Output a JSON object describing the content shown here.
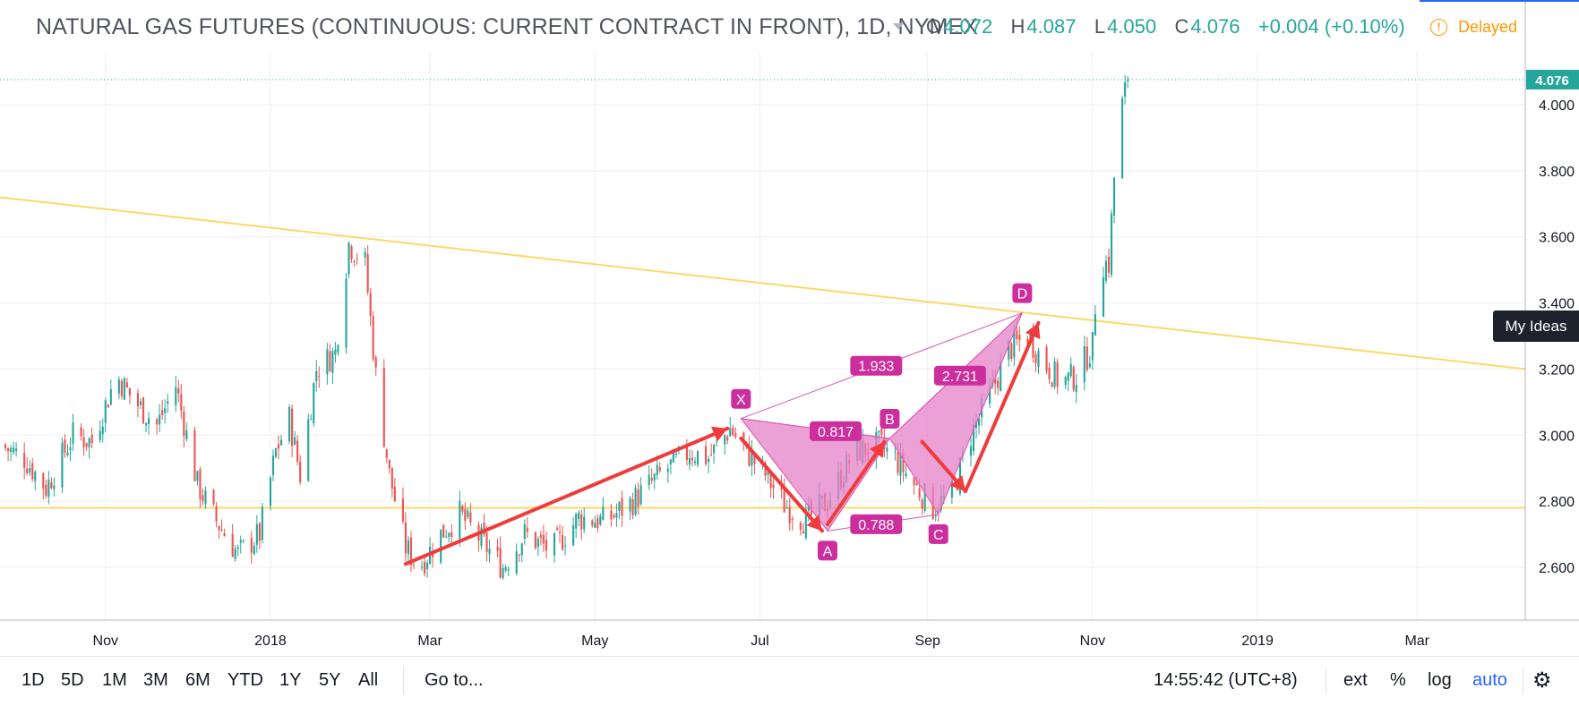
{
  "header": {
    "symbol_title": "NATURAL GAS FUTURES (CONTINUOUS: CURRENT CONTRACT IN FRONT), 1D, NYMEX",
    "ohlc": {
      "o_label": "O",
      "o_value": "4.072",
      "h_label": "H",
      "h_value": "4.087",
      "l_label": "L",
      "l_value": "4.050",
      "c_label": "C",
      "c_value": "4.076",
      "change": "+0.004 (+0.10%)"
    },
    "delayed_label": "Delayed",
    "delayed_icon": "exclamation-circle-icon"
  },
  "side_button": {
    "label": "My Ideas"
  },
  "bottom_bar": {
    "ranges": [
      "1D",
      "5D",
      "1M",
      "3M",
      "6M",
      "YTD",
      "1Y",
      "5Y",
      "All"
    ],
    "goto_label": "Go to...",
    "clock": "14:55:42 (UTC+8)",
    "options": [
      "ext",
      "%",
      "log",
      "auto"
    ],
    "active_option": "auto",
    "settings_icon": "gear-icon"
  },
  "colors": {
    "up": "#26a69a",
    "down": "#ef5350",
    "grid": "#eceff4",
    "trendline": "#fdd867",
    "pattern_fill": "#e682c8",
    "pattern_stroke": "#dc54b0",
    "label_bg": "#cc2f9d",
    "arrow": "#ef3b3b",
    "last_price_bg": "#26a69a"
  },
  "chart_data": {
    "type": "candlestick",
    "x_tick_labels": [
      "Nov",
      "2018",
      "Mar",
      "May",
      "Jul",
      "Sep",
      "Nov",
      "2019",
      "Mar"
    ],
    "x_tick_dates": [
      "2017-11-01",
      "2018-01-01",
      "2018-03-01",
      "2018-05-01",
      "2018-07-01",
      "2018-09-01",
      "2018-11-01",
      "2019-01-01",
      "2019-03-01"
    ],
    "x_range": [
      "2017-09-23",
      "2019-04-10"
    ],
    "y_tick_labels": [
      "2.600",
      "2.800",
      "3.000",
      "3.200",
      "3.400",
      "3.600",
      "3.800",
      "4.000"
    ],
    "ylim": [
      2.44,
      4.16
    ],
    "last_price": "4.076",
    "grid": true,
    "anchors": [
      [
        "2017-09-23",
        2.97
      ],
      [
        "2017-10-02",
        2.93
      ],
      [
        "2017-10-10",
        2.84
      ],
      [
        "2017-10-20",
        3.0
      ],
      [
        "2017-10-27",
        2.98
      ],
      [
        "2017-11-05",
        3.18
      ],
      [
        "2017-11-12",
        3.1
      ],
      [
        "2017-11-20",
        3.03
      ],
      [
        "2017-11-27",
        3.15
      ],
      [
        "2017-12-05",
        2.85
      ],
      [
        "2017-12-12",
        2.74
      ],
      [
        "2017-12-20",
        2.64
      ],
      [
        "2017-12-28",
        2.7
      ],
      [
        "2018-01-03",
        2.95
      ],
      [
        "2018-01-08",
        3.05
      ],
      [
        "2018-01-12",
        2.88
      ],
      [
        "2018-01-18",
        3.2
      ],
      [
        "2018-01-25",
        3.25
      ],
      [
        "2018-01-30",
        3.58
      ],
      [
        "2018-02-05",
        3.52
      ],
      [
        "2018-02-09",
        3.18
      ],
      [
        "2018-02-14",
        2.88
      ],
      [
        "2018-02-20",
        2.66
      ],
      [
        "2018-02-25",
        2.6
      ],
      [
        "2018-03-05",
        2.7
      ],
      [
        "2018-03-12",
        2.76
      ],
      [
        "2018-03-20",
        2.68
      ],
      [
        "2018-03-28",
        2.6
      ],
      [
        "2018-04-05",
        2.7
      ],
      [
        "2018-04-15",
        2.65
      ],
      [
        "2018-04-25",
        2.75
      ],
      [
        "2018-05-05",
        2.74
      ],
      [
        "2018-05-15",
        2.8
      ],
      [
        "2018-05-25",
        2.88
      ],
      [
        "2018-06-05",
        2.95
      ],
      [
        "2018-06-12",
        2.93
      ],
      [
        "2018-06-20",
        3.02
      ],
      [
        "2018-06-26",
        2.95
      ],
      [
        "2018-07-03",
        2.88
      ],
      [
        "2018-07-10",
        2.79
      ],
      [
        "2018-07-18",
        2.74
      ],
      [
        "2018-07-26",
        2.8
      ],
      [
        "2018-08-05",
        2.95
      ],
      [
        "2018-08-14",
        2.97
      ],
      [
        "2018-08-20",
        2.93
      ],
      [
        "2018-08-27",
        2.85
      ],
      [
        "2018-09-03",
        2.78
      ],
      [
        "2018-09-10",
        2.82
      ],
      [
        "2018-09-17",
        3.0
      ],
      [
        "2018-09-24",
        3.12
      ],
      [
        "2018-10-01",
        3.26
      ],
      [
        "2018-10-08",
        3.3
      ],
      [
        "2018-10-14",
        3.22
      ],
      [
        "2018-10-20",
        3.16
      ],
      [
        "2018-10-26",
        3.18
      ],
      [
        "2018-11-01",
        3.27
      ],
      [
        "2018-11-03",
        3.52
      ],
      [
        "2018-11-07",
        3.52
      ],
      [
        "2018-11-09",
        3.78
      ],
      [
        "2018-11-12",
        4.0
      ],
      [
        "2018-11-14",
        4.076
      ]
    ],
    "trendlines": [
      {
        "from": [
          "2017-09-23",
          3.72
        ],
        "to": [
          "2019-04-10",
          3.2
        ]
      },
      {
        "from": [
          "2017-09-23",
          2.78
        ],
        "to": [
          "2019-04-10",
          2.78
        ]
      }
    ],
    "harmonic_pattern": {
      "points": [
        {
          "label": "X",
          "date": "2018-06-24",
          "value": 3.05
        },
        {
          "label": "A",
          "date": "2018-07-26",
          "value": 2.71
        },
        {
          "label": "B",
          "date": "2018-08-18",
          "value": 2.99
        },
        {
          "label": "C",
          "date": "2018-09-05",
          "value": 2.76
        },
        {
          "label": "D",
          "date": "2018-10-06",
          "value": 3.37
        }
      ],
      "ratios": [
        {
          "label": "0.817",
          "date": "2018-07-29",
          "value": 3.012
        },
        {
          "label": "0.788",
          "date": "2018-08-13",
          "value": 2.73
        },
        {
          "label": "1.933",
          "date": "2018-08-13",
          "value": 3.21
        },
        {
          "label": "2.731",
          "date": "2018-09-13",
          "value": 3.18
        }
      ]
    },
    "arrows": [
      {
        "from": [
          "2018-02-20",
          2.61
        ],
        "to": [
          "2018-06-19",
          3.02
        ]
      },
      {
        "from": [
          "2018-06-24",
          2.99
        ],
        "to": [
          "2018-07-24",
          2.71
        ]
      },
      {
        "from": [
          "2018-07-26",
          2.73
        ],
        "to": [
          "2018-08-16",
          2.98
        ]
      },
      {
        "from": [
          "2018-08-30",
          2.98
        ],
        "to": [
          "2018-09-15",
          2.83
        ]
      },
      {
        "from": [
          "2018-09-15",
          2.83
        ],
        "to": [
          "2018-10-12",
          3.34
        ]
      }
    ]
  }
}
